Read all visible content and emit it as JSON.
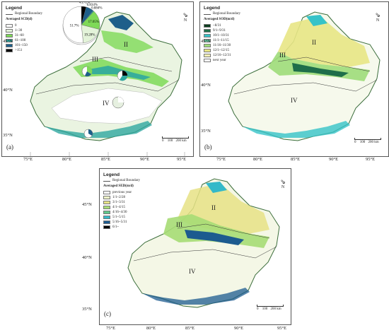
{
  "common": {
    "legend_title": "Legend",
    "boundary_label": "Regional Boundary",
    "lon_ticks": [
      "75°E",
      "80°E",
      "85°E",
      "90°E",
      "95°E"
    ],
    "lat_ticks": [
      "45°N",
      "40°N",
      "35°N"
    ],
    "north_label": "N",
    "scale_ticks": [
      "0",
      "100",
      "200 km"
    ],
    "regions": [
      "I",
      "II",
      "III",
      "IV"
    ]
  },
  "panels": [
    {
      "label": "(a)",
      "legend_subtitle": "Averaged SCD(d)",
      "classes": [
        {
          "label": "0",
          "color": "#ffffff"
        },
        {
          "label": "1~30",
          "color": "#e3f3d9"
        },
        {
          "label": "31~60",
          "color": "#7ed957"
        },
        {
          "label": "61~100",
          "color": "#2fa8a0"
        },
        {
          "label": "101~150",
          "color": "#1e5f8a"
        },
        {
          "label": ">151",
          "color": "#000000"
        }
      ],
      "pie": {
        "labels": [
          "4.272%",
          "6.834%",
          "0.884%",
          "17.05%",
          "19.28%",
          "51.7%"
        ],
        "values": [
          4.272,
          6.834,
          0.884,
          17.05,
          19.28,
          51.7
        ],
        "colors": [
          "#000000",
          "#1e5f8a",
          "#2fa8a0",
          "#7ed957",
          "#e3f3d9",
          "#ffffff"
        ]
      }
    },
    {
      "label": "(b)",
      "legend_subtitle": "Averaged SOD(m/d)",
      "classes": [
        {
          "label": "~8/31",
          "color": "#0b3d1f"
        },
        {
          "label": "9/1~9/31",
          "color": "#1f6e4a"
        },
        {
          "label": "10/1~10/31",
          "color": "#36c3c8"
        },
        {
          "label": "11/1~11/15",
          "color": "#66c7a0"
        },
        {
          "label": "11/16~11/30",
          "color": "#9fdc7a"
        },
        {
          "label": "12/1~12/15",
          "color": "#e8e685"
        },
        {
          "label": "12/16~12/31",
          "color": "#f4efb5"
        },
        {
          "label": "next year",
          "color": "#ffffff"
        }
      ]
    },
    {
      "label": "(c)",
      "legend_subtitle": "Averaged SED(m/d)",
      "classes": [
        {
          "label": "previous year",
          "color": "#ffffff"
        },
        {
          "label": "1/1~2/28",
          "color": "#eef4c8"
        },
        {
          "label": "3/1~3/31",
          "color": "#e6e285"
        },
        {
          "label": "4/1~4/15",
          "color": "#a6dc74"
        },
        {
          "label": "4/16~4/30",
          "color": "#5fc78a"
        },
        {
          "label": "5/1~5/15",
          "color": "#33b9c9"
        },
        {
          "label": "5/16~5/31",
          "color": "#1c5b8f"
        },
        {
          "label": "6/1~",
          "color": "#000000"
        }
      ]
    }
  ]
}
